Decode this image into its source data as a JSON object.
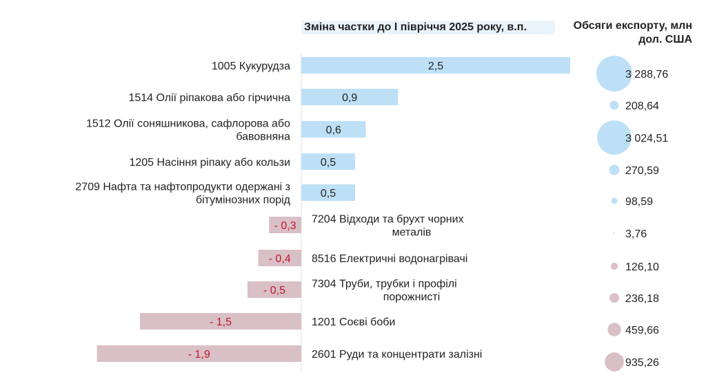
{
  "chart_data": {
    "type": "bar",
    "headers": {
      "change": "Зміна частки до І півріччя 2025 року, в.п.",
      "export": "Обсяги експорту, млн дол. США"
    },
    "rows": [
      {
        "label": [
          "1005 Кукурудза"
        ],
        "value": 2.5,
        "value_label": "2,5",
        "export": 3288.76,
        "export_label": "3 288,76"
      },
      {
        "label": [
          "1514 Олії ріпакова або гірчична"
        ],
        "value": 0.9,
        "value_label": "0,9",
        "export": 208.64,
        "export_label": "208,64"
      },
      {
        "label": [
          "1512 Олії соняшникова, сафлорова або",
          "бавовняна"
        ],
        "value": 0.6,
        "value_label": "0,6",
        "export": 3024.51,
        "export_label": "3 024,51"
      },
      {
        "label": [
          "1205 Насіння ріпаку або кользи"
        ],
        "value": 0.5,
        "value_label": "0,5",
        "export": 270.59,
        "export_label": "270,59"
      },
      {
        "label": [
          "2709 Нафта та нафтопродукти одержані з",
          "бітумінозних порід"
        ],
        "value": 0.5,
        "value_label": "0,5",
        "export": 98.59,
        "export_label": "98,59"
      },
      {
        "label": [
          "7204 Відходи та брухт чорних",
          "металів"
        ],
        "value": -0.3,
        "value_label": "- 0,3",
        "export": 3.76,
        "export_label": "3,76"
      },
      {
        "label": [
          "8516 Електричні водонагрівачі"
        ],
        "value": -0.4,
        "value_label": "- 0,4",
        "export": 126.1,
        "export_label": "126,10"
      },
      {
        "label": [
          "7304 Труби, трубки і профілі",
          "порожнисті"
        ],
        "value": -0.5,
        "value_label": "- 0,5",
        "export": 236.18,
        "export_label": "236,18"
      },
      {
        "label": [
          "1201 Соєві боби"
        ],
        "value": -1.5,
        "value_label": "- 1,5",
        "export": 459.66,
        "export_label": "459,66"
      },
      {
        "label": [
          "2601 Руди та концентрати залізні"
        ],
        "value": -1.9,
        "value_label": "- 1,9",
        "export": 935.26,
        "export_label": "935,26"
      }
    ],
    "colors": {
      "positive_bar": "#bde0f6",
      "negative_bar": "#d9bfc6",
      "positive_bubble": "#bde0f6",
      "negative_bubble": "#d9bfc6",
      "negative_text": "#c0172b",
      "positive_text": "#222222"
    }
  }
}
